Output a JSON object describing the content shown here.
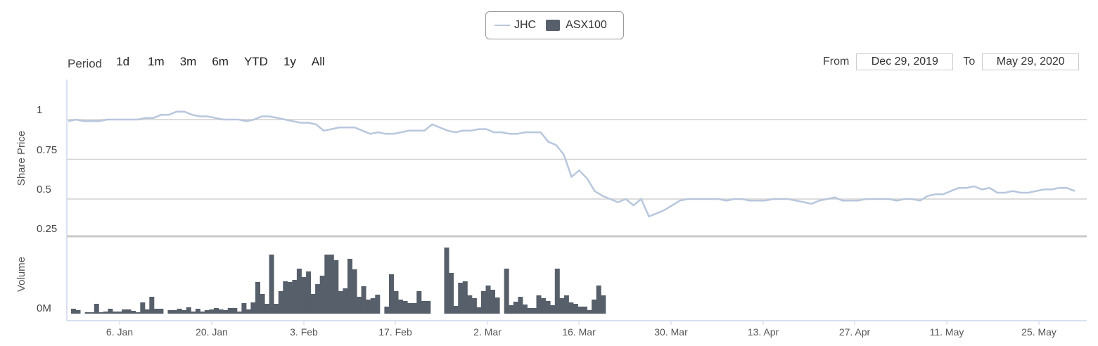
{
  "legend": {
    "series": [
      {
        "name": "JHC",
        "color": "#b8c7dc"
      },
      {
        "name": "ASX100",
        "color": "#565f6a"
      }
    ]
  },
  "period_selector": {
    "label": "Period",
    "options": [
      "1d",
      "1m",
      "3m",
      "6m",
      "YTD",
      "1y",
      "All"
    ]
  },
  "date_range": {
    "from_label": "From",
    "from_value": "Dec 29, 2019",
    "to_label": "To",
    "to_value": "May 29, 2020"
  },
  "chart_data": [
    {
      "type": "line",
      "ylabel": "Share Price",
      "ytick_labels": [
        "1",
        "0.75",
        "0.5",
        "0.25"
      ],
      "ylim": [
        0.25,
        1.2
      ],
      "grid": true,
      "xlabel": "",
      "xtick_labels": [
        "6. Jan",
        "20. Jan",
        "3. Feb",
        "17. Feb",
        "2. Mar",
        "16. Mar",
        "30. Mar",
        "13. Apr",
        "27. Apr",
        "11. May",
        "25. May"
      ],
      "series": [
        {
          "name": "JHC",
          "color": "#b8c7dc",
          "x_start": "2020-01-01",
          "values": [
            0.99,
            1.0,
            0.99,
            0.99,
            0.99,
            1.0,
            1.0,
            1.0,
            1.0,
            1.0,
            1.01,
            1.01,
            1.03,
            1.03,
            1.05,
            1.05,
            1.03,
            1.02,
            1.02,
            1.01,
            1.0,
            1.0,
            1.0,
            0.99,
            1.0,
            1.02,
            1.02,
            1.01,
            1.0,
            0.99,
            0.98,
            0.98,
            0.97,
            0.93,
            0.94,
            0.95,
            0.95,
            0.95,
            0.93,
            0.91,
            0.92,
            0.91,
            0.91,
            0.92,
            0.93,
            0.93,
            0.93,
            0.97,
            0.95,
            0.93,
            0.92,
            0.93,
            0.93,
            0.94,
            0.94,
            0.92,
            0.92,
            0.91,
            0.91,
            0.92,
            0.92,
            0.92,
            0.86,
            0.84,
            0.78,
            0.64,
            0.68,
            0.63,
            0.55,
            0.52,
            0.5,
            0.48,
            0.5,
            0.46,
            0.5,
            0.39,
            0.41,
            0.43,
            0.46,
            0.49,
            0.5,
            0.5,
            0.5,
            0.5,
            0.5,
            0.49,
            0.5,
            0.5,
            0.49,
            0.49,
            0.49,
            0.5,
            0.5,
            0.5,
            0.49,
            0.48,
            0.47,
            0.49,
            0.5,
            0.51,
            0.49,
            0.49,
            0.49,
            0.5,
            0.5,
            0.5,
            0.5,
            0.49,
            0.5,
            0.5,
            0.49,
            0.52,
            0.53,
            0.53,
            0.55,
            0.57,
            0.57,
            0.58,
            0.56,
            0.57,
            0.54,
            0.54,
            0.55,
            0.54,
            0.54,
            0.55,
            0.56,
            0.56,
            0.57,
            0.57,
            0.55
          ]
        }
      ]
    },
    {
      "type": "bar",
      "ylabel": "Volume",
      "ytick_labels": [
        "0M"
      ],
      "series": [
        {
          "name": "ASX100",
          "color": "#565f6a",
          "values": [
            7,
            5,
            0,
            2,
            2,
            14,
            2,
            3,
            7,
            3,
            3,
            6,
            6,
            4,
            2,
            16,
            6,
            24,
            7,
            7,
            0,
            5,
            5,
            7,
            5,
            9,
            3,
            7,
            3,
            5,
            6,
            8,
            6,
            5,
            8,
            8,
            3,
            15,
            6,
            16,
            45,
            28,
            14,
            84,
            14,
            32,
            46,
            45,
            48,
            64,
            52,
            60,
            28,
            42,
            54,
            84,
            84,
            76,
            32,
            36,
            78,
            63,
            24,
            39,
            20,
            22,
            27,
            0,
            10,
            56,
            32,
            20,
            18,
            15,
            15,
            32,
            18,
            18,
            0,
            0,
            0,
            94,
            58,
            11,
            44,
            46,
            26,
            22,
            9,
            32,
            40,
            34,
            23,
            0,
            64,
            12,
            17,
            24,
            13,
            8,
            8,
            26,
            22,
            18,
            12,
            64,
            22,
            26,
            16,
            14,
            10,
            10,
            5,
            20,
            40,
            26,
            0,
            0,
            0,
            0,
            0,
            0,
            0,
            0,
            0,
            0,
            0,
            0,
            0,
            0,
            0
          ]
        }
      ]
    }
  ]
}
